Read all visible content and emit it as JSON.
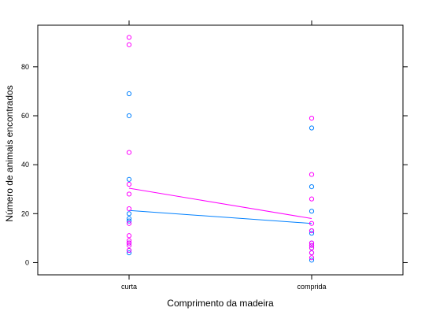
{
  "chart_data": {
    "type": "scatter",
    "title": "",
    "xlabel": "Comprimento da madeira",
    "ylabel": "Número de animais encontrados",
    "categories": [
      "curta",
      "comprida"
    ],
    "xlim": [
      0.5,
      2.5
    ],
    "ylim": [
      -5,
      97
    ],
    "yticks": [
      0,
      20,
      40,
      60,
      80
    ],
    "grid": false,
    "legend": "none",
    "series": [
      {
        "color": "#0080ff",
        "points": {
          "curta": [
            69,
            60,
            34,
            20,
            18,
            17,
            8,
            8,
            5,
            4
          ],
          "comprida": [
            55,
            31,
            21,
            13,
            12,
            8,
            7,
            6,
            4,
            1
          ]
        },
        "trend": [
          21.3,
          16.0
        ]
      },
      {
        "color": "#ff00ff",
        "points": {
          "curta": [
            92,
            89,
            45,
            32,
            28,
            22,
            16,
            11,
            9,
            8,
            7,
            5
          ],
          "comprida": [
            59,
            36,
            26,
            16,
            13,
            8,
            7,
            6,
            4,
            2
          ]
        },
        "trend": [
          30.4,
          18.0
        ]
      }
    ]
  }
}
